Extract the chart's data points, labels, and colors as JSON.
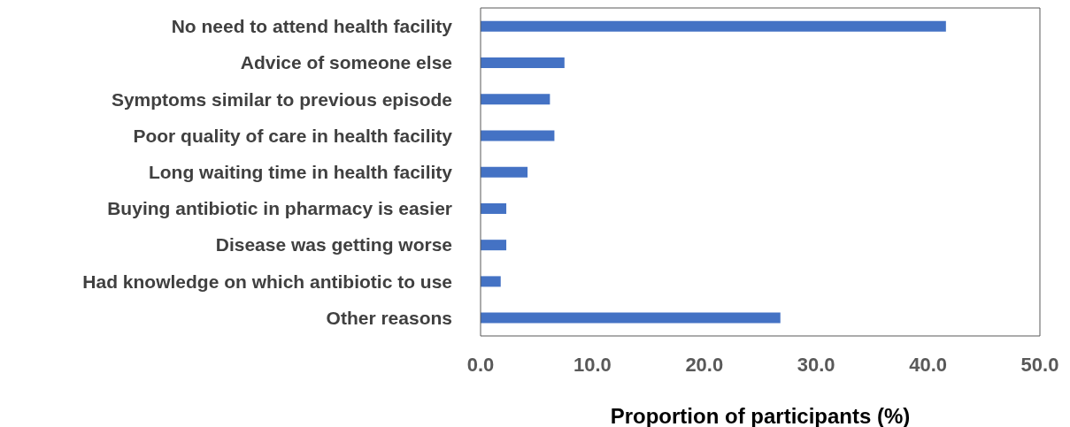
{
  "chart_data": {
    "type": "bar",
    "orientation": "horizontal",
    "xlabel": "Proportion of participants (%)",
    "categories": [
      "No need to attend health facility",
      "Advice of someone else",
      "Symptoms similar to previous episode",
      "Poor quality of care in health facility",
      "Long waiting time in health facility",
      "Buying antibiotic in pharmacy is easier",
      "Disease was getting worse",
      "Had knowledge on which antibiotic to use",
      "Other reasons"
    ],
    "values": [
      41.6,
      7.5,
      6.2,
      6.6,
      4.2,
      2.3,
      2.3,
      1.8,
      26.8
    ],
    "color": "#4472c4",
    "xlim": [
      0,
      50
    ],
    "xticks": [
      {
        "value": 0,
        "label": "0.0"
      },
      {
        "value": 10,
        "label": "10.0"
      },
      {
        "value": 20,
        "label": "20.0"
      },
      {
        "value": 30,
        "label": "30.0"
      },
      {
        "value": 40,
        "label": "40.0"
      },
      {
        "value": 50,
        "label": "50.0"
      }
    ],
    "grid": false
  }
}
